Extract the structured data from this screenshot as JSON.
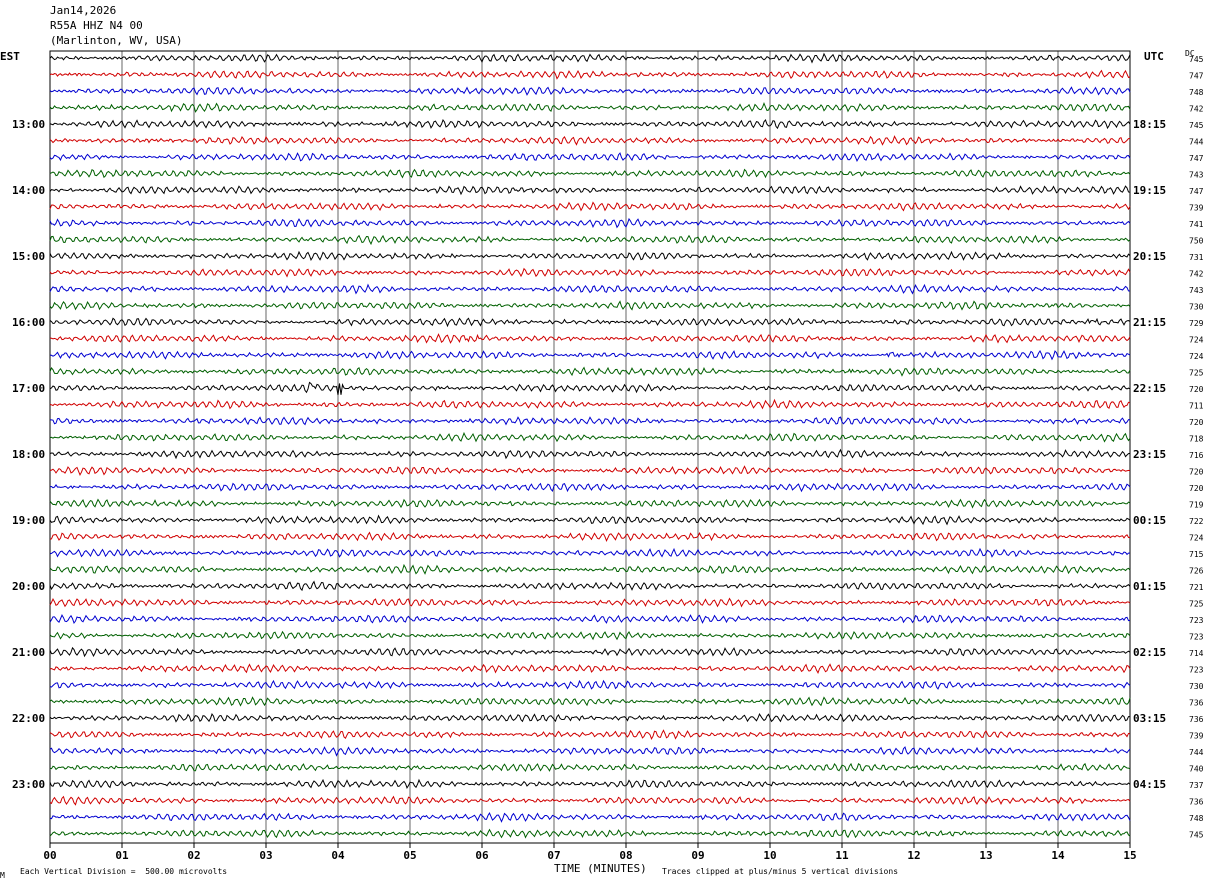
{
  "header": {
    "date": "Jan14,2026",
    "station": "R55A HHZ N4 00",
    "location": "(Marlinton, WV, USA)"
  },
  "left_zone_label": "EST",
  "right_zone_label": "UTC",
  "dc_label": "DC",
  "footer": {
    "scale": "Each Vertical Division =  500.00 microvolts",
    "clip": "Traces clipped at plus/minus 5 vertical divisions",
    "corner_mark": "M"
  },
  "chart_data": {
    "type": "line",
    "xlabel": "TIME (MINUTES)",
    "xlim": [
      0,
      15
    ],
    "x_ticks": [
      "00",
      "01",
      "02",
      "03",
      "04",
      "05",
      "06",
      "07",
      "08",
      "09",
      "10",
      "11",
      "12",
      "13",
      "14",
      "15"
    ],
    "rows_per_hour": 4,
    "line_colors": [
      "#000000",
      "#d00000",
      "#0000d0",
      "#006000"
    ],
    "left_hour_labels": [
      {
        "row": 4,
        "label": "13:00"
      },
      {
        "row": 8,
        "label": "14:00"
      },
      {
        "row": 12,
        "label": "15:00"
      },
      {
        "row": 16,
        "label": "16:00"
      },
      {
        "row": 20,
        "label": "17:00"
      },
      {
        "row": 24,
        "label": "18:00"
      },
      {
        "row": 28,
        "label": "19:00"
      },
      {
        "row": 32,
        "label": "20:00"
      },
      {
        "row": 36,
        "label": "21:00"
      },
      {
        "row": 40,
        "label": "22:00"
      },
      {
        "row": 44,
        "label": "23:00"
      }
    ],
    "right_hour_labels": [
      {
        "row": 4,
        "label": "18:15"
      },
      {
        "row": 8,
        "label": "19:15"
      },
      {
        "row": 12,
        "label": "20:15"
      },
      {
        "row": 16,
        "label": "21:15"
      },
      {
        "row": 20,
        "label": "22:15"
      },
      {
        "row": 24,
        "label": "23:15"
      },
      {
        "row": 28,
        "label": "00:15"
      },
      {
        "row": 32,
        "label": "01:15"
      },
      {
        "row": 36,
        "label": "02:15"
      },
      {
        "row": 40,
        "label": "03:15"
      },
      {
        "row": 44,
        "label": "04:15"
      }
    ],
    "dc_offsets": [
      "745",
      "747",
      "748",
      "742",
      "745",
      "744",
      "747",
      "743",
      "747",
      "739",
      "741",
      "750",
      "731",
      "742",
      "743",
      "730",
      "729",
      "724",
      "724",
      "725",
      "720",
      "711",
      "720",
      "718",
      "716",
      "720",
      "720",
      "719",
      "722",
      "724",
      "715",
      "726",
      "721",
      "725",
      "723",
      "723",
      "714",
      "723",
      "730",
      "736",
      "736",
      "739",
      "744",
      "740",
      "737",
      "736",
      "748",
      "745"
    ],
    "events": [
      {
        "row": 20,
        "minute": 3.65,
        "amplitude": 8,
        "width": 0.08
      },
      {
        "row": 20,
        "minute": 4.03,
        "amplitude": 14,
        "width": 0.05
      },
      {
        "row": 17,
        "minute": 5.85,
        "amplitude": 3,
        "width": 0.3
      },
      {
        "row": 18,
        "minute": 11.7,
        "amplitude": 3,
        "width": 0.15
      },
      {
        "row": 19,
        "minute": 11.1,
        "amplitude": 4,
        "width": 0.1
      },
      {
        "row": 16,
        "minute": 14.45,
        "amplitude": 3,
        "width": 0.15
      }
    ]
  }
}
